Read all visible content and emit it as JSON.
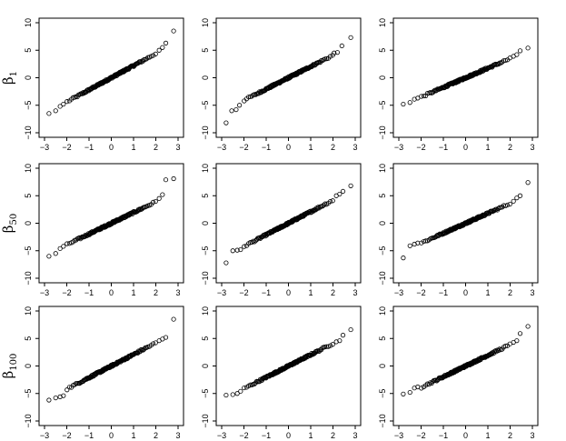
{
  "chart_data": {
    "type": "scatter",
    "description_kind": "normal-qq-grid",
    "rows": [
      {
        "label_base": "β",
        "label_sub": "1"
      },
      {
        "label_base": "β",
        "label_sub": "50"
      },
      {
        "label_base": "β",
        "label_sub": "100"
      }
    ],
    "xlim": [
      -3,
      3
    ],
    "ylim": [
      -10,
      10
    ],
    "x_ticks": [
      -3,
      -2,
      -1,
      0,
      1,
      2,
      3
    ],
    "x_tick_labels": [
      "−3",
      "−2",
      "−1",
      "0",
      "1",
      "2",
      "3"
    ],
    "y_ticks": [
      -10,
      -5,
      0,
      5,
      10
    ],
    "y_tick_labels": [
      "−10",
      "−5",
      "0",
      "5",
      "10"
    ],
    "panels": [
      {
        "row": 0,
        "col": 0,
        "slope": 2.2,
        "low": [
          [
            -2.8,
            -6.5
          ],
          [
            -2.5,
            -6.0
          ],
          [
            -2.3,
            -5.2
          ],
          [
            -2.15,
            -4.8
          ]
        ],
        "high": [
          [
            2.15,
            5.0
          ],
          [
            2.3,
            5.5
          ],
          [
            2.45,
            6.3
          ],
          [
            2.8,
            8.5
          ]
        ]
      },
      {
        "row": 0,
        "col": 1,
        "slope": 2.05,
        "low": [
          [
            -2.8,
            -8.2
          ],
          [
            -2.55,
            -6.0
          ],
          [
            -2.35,
            -5.8
          ],
          [
            -2.2,
            -5.0
          ]
        ],
        "high": [
          [
            2.05,
            4.5
          ],
          [
            2.2,
            4.6
          ],
          [
            2.4,
            5.8
          ],
          [
            2.8,
            7.3
          ]
        ]
      },
      {
        "row": 0,
        "col": 2,
        "slope": 1.75,
        "low": [
          [
            -2.8,
            -4.8
          ],
          [
            -2.5,
            -4.5
          ],
          [
            -2.3,
            -3.9
          ],
          [
            -2.15,
            -3.7
          ]
        ],
        "high": [
          [
            2.15,
            3.9
          ],
          [
            2.3,
            4.2
          ],
          [
            2.45,
            4.9
          ],
          [
            2.8,
            5.4
          ]
        ]
      },
      {
        "row": 1,
        "col": 0,
        "slope": 1.95,
        "low": [
          [
            -2.8,
            -6.0
          ],
          [
            -2.5,
            -5.5
          ],
          [
            -2.3,
            -4.6
          ],
          [
            -2.15,
            -4.2
          ]
        ],
        "high": [
          [
            2.15,
            4.5
          ],
          [
            2.3,
            5.2
          ],
          [
            2.45,
            7.9
          ],
          [
            2.8,
            8.1
          ]
        ]
      },
      {
        "row": 1,
        "col": 1,
        "slope": 2.1,
        "low": [
          [
            -2.8,
            -7.2
          ],
          [
            -2.5,
            -5.0
          ],
          [
            -2.3,
            -4.9
          ],
          [
            -2.15,
            -4.8
          ]
        ],
        "high": [
          [
            2.15,
            5.0
          ],
          [
            2.3,
            5.3
          ],
          [
            2.45,
            5.8
          ],
          [
            2.8,
            6.8
          ]
        ]
      },
      {
        "row": 1,
        "col": 2,
        "slope": 1.8,
        "low": [
          [
            -2.8,
            -6.3
          ],
          [
            -2.5,
            -4.1
          ],
          [
            -2.3,
            -3.8
          ],
          [
            -2.15,
            -3.6
          ]
        ],
        "high": [
          [
            2.15,
            4.0
          ],
          [
            2.3,
            4.6
          ],
          [
            2.45,
            5.0
          ],
          [
            2.8,
            7.4
          ]
        ]
      },
      {
        "row": 2,
        "col": 0,
        "slope": 2.1,
        "low": [
          [
            -2.8,
            -6.2
          ],
          [
            -2.5,
            -5.8
          ],
          [
            -2.3,
            -5.6
          ],
          [
            -2.15,
            -5.4
          ]
        ],
        "high": [
          [
            2.15,
            4.6
          ],
          [
            2.3,
            4.9
          ],
          [
            2.45,
            5.2
          ],
          [
            2.8,
            8.5
          ]
        ]
      },
      {
        "row": 2,
        "col": 1,
        "slope": 2.05,
        "low": [
          [
            -2.8,
            -5.3
          ],
          [
            -2.5,
            -5.2
          ],
          [
            -2.3,
            -5.0
          ],
          [
            -2.15,
            -4.6
          ]
        ],
        "high": [
          [
            2.15,
            4.4
          ],
          [
            2.3,
            4.6
          ],
          [
            2.45,
            5.6
          ],
          [
            2.8,
            6.6
          ]
        ]
      },
      {
        "row": 2,
        "col": 2,
        "slope": 1.95,
        "low": [
          [
            -2.8,
            -5.1
          ],
          [
            -2.5,
            -4.8
          ],
          [
            -2.3,
            -4.0
          ],
          [
            -2.15,
            -3.8
          ]
        ],
        "high": [
          [
            2.15,
            4.3
          ],
          [
            2.3,
            4.6
          ],
          [
            2.45,
            5.9
          ],
          [
            2.8,
            7.2
          ]
        ]
      }
    ]
  }
}
